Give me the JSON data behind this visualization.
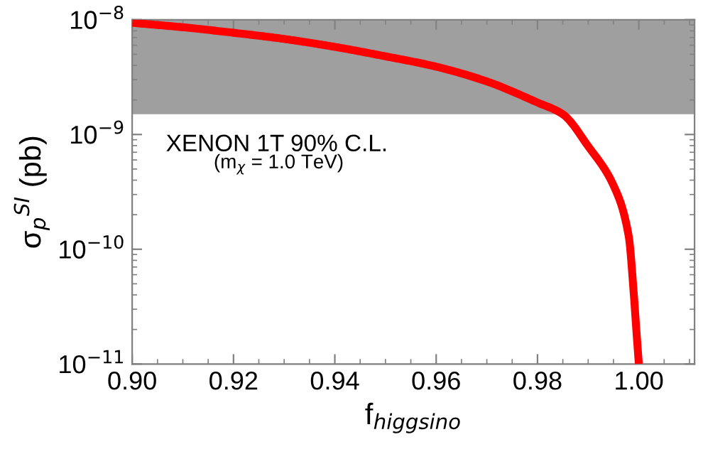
{
  "chart_data": {
    "type": "line",
    "xlabel": "f$_{higgsino}$",
    "ylabel": "σ$_{p}$$^{SI}$ (pb)",
    "x": [
      0.9,
      0.91,
      0.92,
      0.93,
      0.94,
      0.95,
      0.96,
      0.97,
      0.98,
      0.985,
      0.99,
      0.995,
      0.998,
      0.999,
      0.9995,
      1.0
    ],
    "series": [
      {
        "color": "#ff0000",
        "values": [
          9.4e-09,
          8.6e-09,
          7.7e-09,
          6.8e-09,
          5.8e-09,
          4.8e-09,
          3.9e-09,
          2.9e-09,
          1.9e-09,
          1.5e-09,
          7.9e-10,
          3.6e-10,
          1.3e-10,
          4.1e-11,
          2e-11,
          1e-11
        ]
      }
    ],
    "log": "y",
    "xlim": [
      0.9,
      1.011
    ],
    "ylim": [
      1e-11,
      1e-08
    ],
    "xticks": [
      {
        "value": 0.9,
        "label": "0.90"
      },
      {
        "value": 0.92,
        "label": "0.92"
      },
      {
        "value": 0.94,
        "label": "0.94"
      },
      {
        "value": 0.96,
        "label": "0.96"
      },
      {
        "value": 0.98,
        "label": "0.98"
      },
      {
        "value": 1.0,
        "label": "1.00"
      }
    ],
    "yticks": [
      {
        "value": 1e-11,
        "label": "10$^{−11}$"
      },
      {
        "value": 1e-10,
        "label": "10$^{−10}$"
      },
      {
        "value": 1e-09,
        "label": "10$^{−9}$"
      },
      {
        "value": 1e-08,
        "label": "10$^{−8}$"
      }
    ],
    "bands": [
      {
        "axis": "y",
        "from": 1.5e-09,
        "to": 1e-08,
        "label": "XENON 1T 90% C.L.",
        "color": "#828282"
      }
    ],
    "annotations": [
      "(m$_{χ}$ = 1.0 TeV)"
    ],
    "grid": false,
    "legend": false,
    "line_style": "solid",
    "marker": "none"
  }
}
